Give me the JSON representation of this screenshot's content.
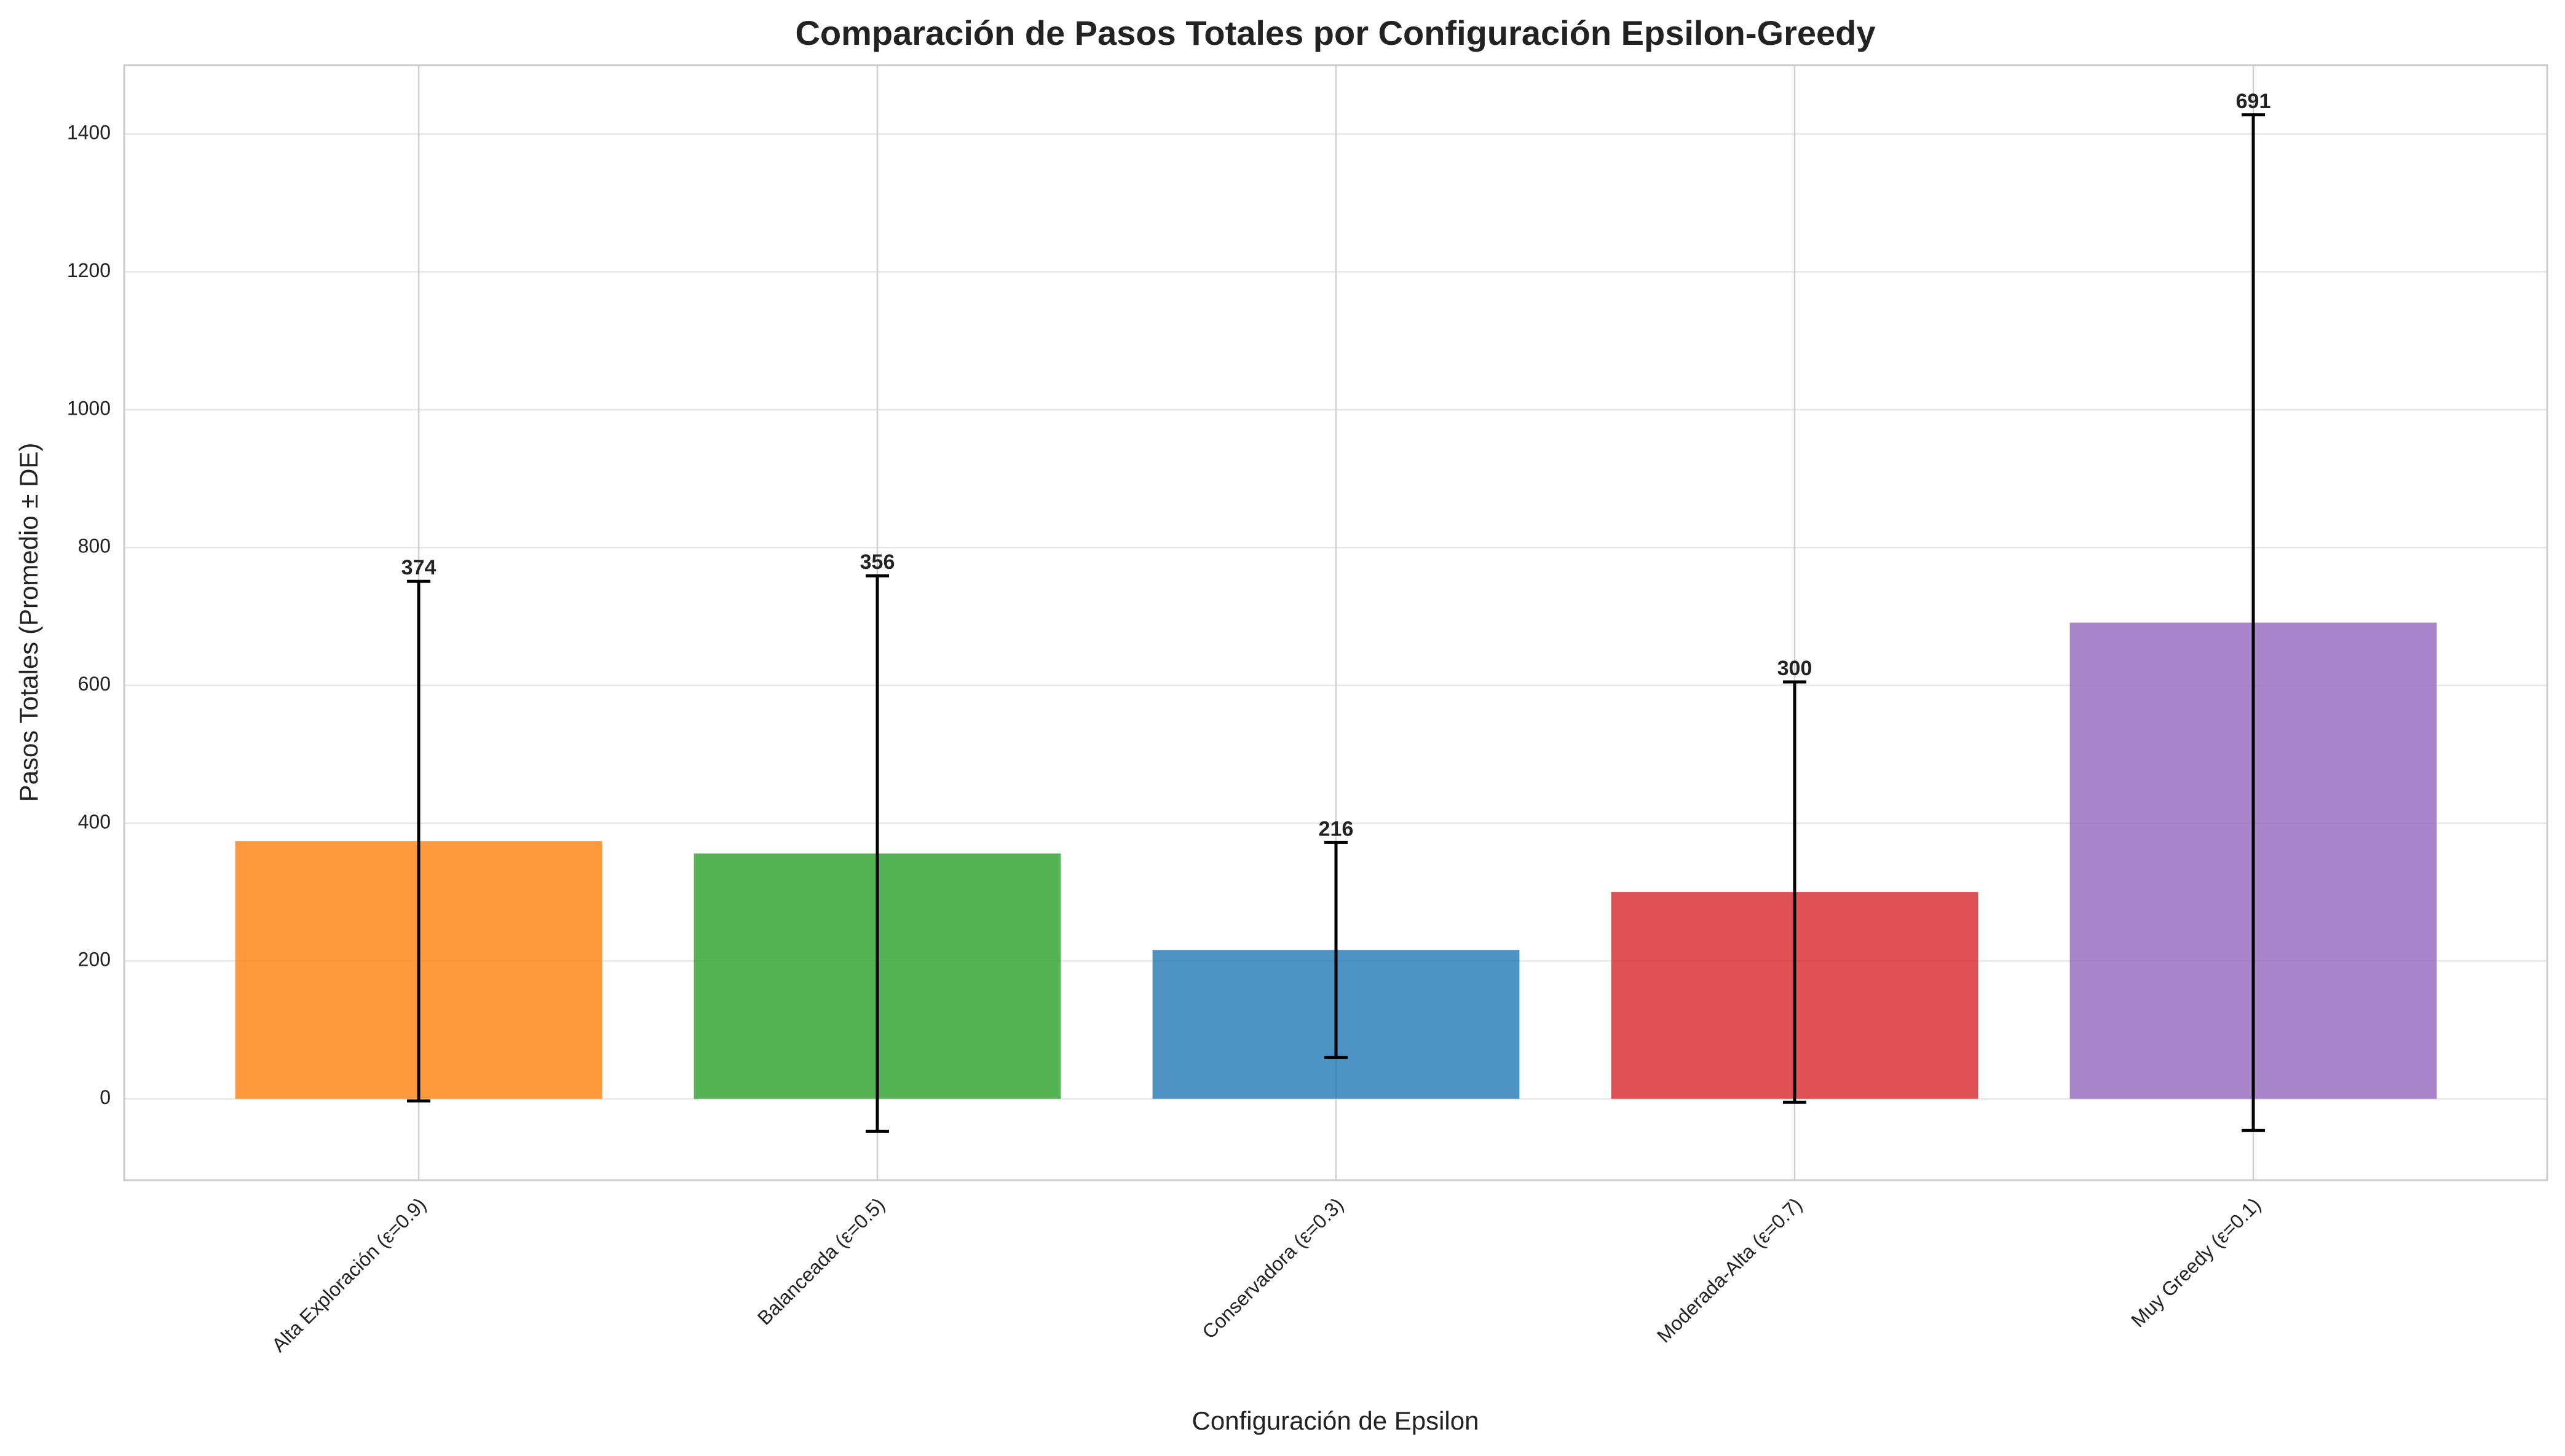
{
  "chart_data": {
    "type": "bar",
    "title": "Comparación de Pasos Totales por Configuración Epsilon-Greedy",
    "xlabel": "Configuración de Epsilon",
    "ylabel": "Pasos Totales (Promedio ± DE)",
    "categories": [
      "Alta Exploración (ε=0.9)",
      "Balanceada (ε=0.5)",
      "Conservadora (ε=0.3)",
      "Moderada-Alta (ε=0.7)",
      "Muy Greedy (ε=0.1)"
    ],
    "values": [
      374,
      356,
      216,
      300,
      691
    ],
    "errors": [
      377,
      403,
      156,
      305,
      737
    ],
    "colors": [
      "#ff7f0e",
      "#2ca02c",
      "#1f77b4",
      "#d62728",
      "#9467bd"
    ],
    "ylim": [
      -118,
      1500
    ],
    "yticks": [
      0,
      200,
      400,
      600,
      800,
      1000,
      1200,
      1400
    ],
    "grid": true
  }
}
